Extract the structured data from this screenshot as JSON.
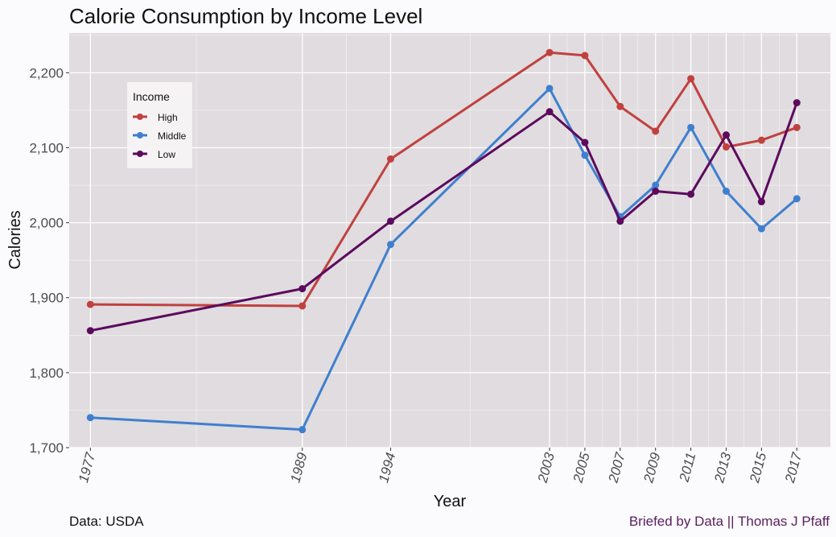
{
  "footer": {
    "source": "Data: USDA",
    "credit": "Briefed by Data || Thomas J Pfaff",
    "credit_color": "#5a1f5f"
  },
  "chart_data": {
    "type": "line",
    "title": "Calorie Consumption by Income Level",
    "xlabel": "Year",
    "ylabel": "Calories",
    "x": [
      1977,
      1989,
      1994,
      2003,
      2005,
      2007,
      2009,
      2011,
      2013,
      2015,
      2017
    ],
    "x_tick_labels": [
      "1977",
      "1989",
      "1994",
      "2003",
      "2005",
      "2007",
      "2009",
      "2011",
      "2013",
      "2015",
      "2017"
    ],
    "xlim": [
      1975.8,
      2018.9
    ],
    "ylim": [
      1700,
      2253
    ],
    "y_ticks": [
      1700,
      1800,
      1900,
      2000,
      2100,
      2200
    ],
    "y_tick_labels": [
      "1,700",
      "1,800",
      "1,900",
      "2,000",
      "2,100",
      "2,200"
    ],
    "grid": true,
    "legend": {
      "title": "Income",
      "position": "top-left inside"
    },
    "series": [
      {
        "name": "High",
        "color": "#c0413f",
        "values": [
          1891,
          1889,
          2085,
          2227,
          2223,
          2155,
          2122,
          2192,
          2101,
          2110,
          2127
        ]
      },
      {
        "name": "Middle",
        "color": "#3f7fcf",
        "values": [
          1740,
          1724,
          1971,
          2179,
          2090,
          2008,
          2050,
          2127,
          2042,
          1992,
          2032
        ]
      },
      {
        "name": "Low",
        "color": "#5c0a5e",
        "values": [
          1856,
          1912,
          2002,
          2148,
          2107,
          2002,
          2042,
          2038,
          2117,
          2028,
          2160
        ]
      }
    ]
  }
}
